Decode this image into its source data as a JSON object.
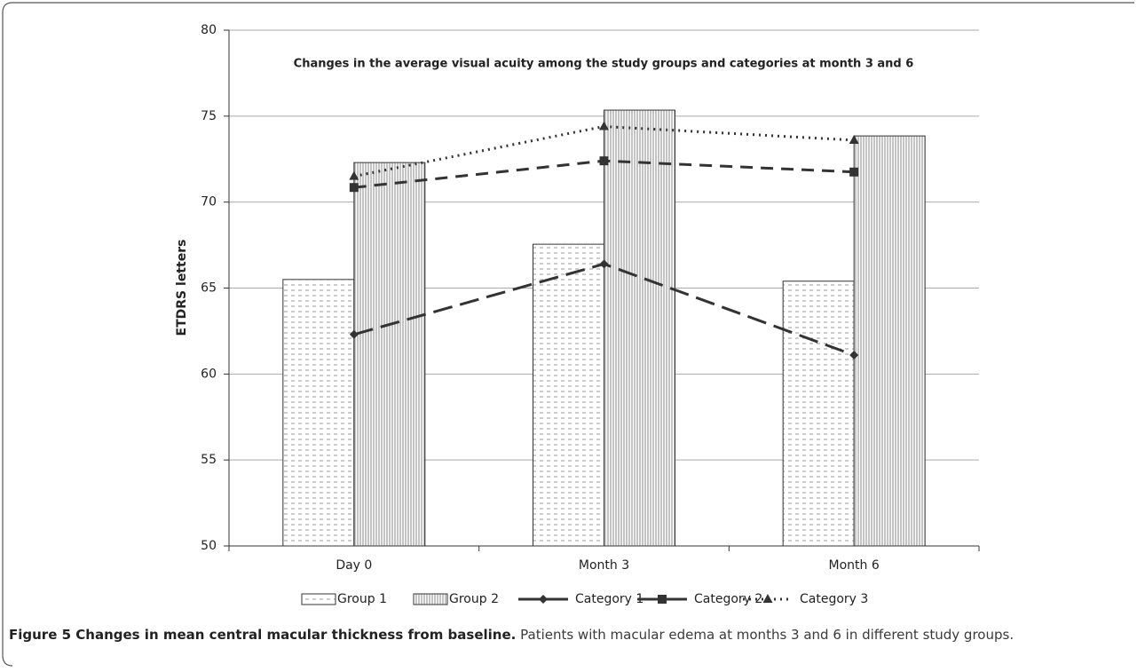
{
  "chart_data": {
    "type": "bar-line",
    "title": "Changes in the average visual acuity among the study groups and categories at month 3 and 6",
    "ylabel": "ETDRS letters",
    "categories": [
      "Day 0",
      "Month 3",
      "Month 6"
    ],
    "ylim": [
      50,
      80
    ],
    "yticks": [
      50,
      55,
      60,
      65,
      70,
      75,
      80
    ],
    "grid": true,
    "legend": "bottom",
    "series": [
      {
        "name": "Group 1",
        "kind": "bar",
        "pattern": "dashes",
        "color": "#8a8a8a",
        "values": [
          65.5,
          67.55,
          65.4
        ]
      },
      {
        "name": "Group 2",
        "kind": "bar",
        "pattern": "vertical-lines",
        "color": "#8a8a8a",
        "values": [
          72.3,
          75.35,
          73.85
        ]
      },
      {
        "name": "Category 1",
        "kind": "line",
        "dash": "long-dash",
        "marker": "diamond",
        "color": "#333333",
        "values": [
          62.3,
          66.4,
          61.1
        ]
      },
      {
        "name": "Category 2",
        "kind": "line",
        "dash": "dash",
        "marker": "square",
        "color": "#333333",
        "values": [
          70.85,
          72.4,
          71.75
        ]
      },
      {
        "name": "Category 3",
        "kind": "line",
        "dash": "dot",
        "marker": "triangle",
        "color": "#333333",
        "values": [
          71.5,
          74.4,
          73.6
        ]
      }
    ],
    "caption_title": "Figure 5 Changes in mean central macular thickness from baseline.",
    "caption_text": "Patients with macular edema at months 3 and 6 in different study groups."
  }
}
